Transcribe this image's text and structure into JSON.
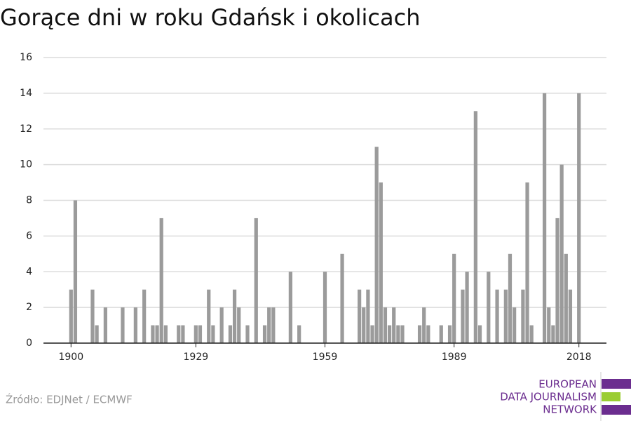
{
  "chart_data": {
    "type": "bar",
    "title": "Gorące dni w roku Gdańsk i okolicach",
    "source": "Źródło: EDJNet / ECMWF",
    "logo": [
      "EUROPEAN",
      "DATA JOURNALISM",
      "NETWORK"
    ],
    "color": "#9b9b9b",
    "grid": true,
    "x": [
      1900,
      1901,
      1905,
      1906,
      1908,
      1912,
      1915,
      1917,
      1919,
      1920,
      1921,
      1922,
      1925,
      1926,
      1929,
      1930,
      1932,
      1933,
      1935,
      1937,
      1938,
      1939,
      1941,
      1943,
      1945,
      1946,
      1947,
      1951,
      1953,
      1959,
      1963,
      1967,
      1968,
      1969,
      1970,
      1971,
      1972,
      1973,
      1974,
      1975,
      1976,
      1977,
      1981,
      1982,
      1983,
      1986,
      1988,
      1989,
      1991,
      1992,
      1994,
      1995,
      1997,
      1999,
      2001,
      2002,
      2003,
      2005,
      2006,
      2007,
      2010,
      2011,
      2012,
      2013,
      2014,
      2015,
      2016,
      2018
    ],
    "values": [
      3,
      8,
      3,
      1,
      2,
      2,
      2,
      3,
      1,
      1,
      7,
      1,
      1,
      1,
      1,
      1,
      3,
      1,
      2,
      1,
      3,
      2,
      1,
      7,
      1,
      2,
      2,
      4,
      1,
      4,
      5,
      3,
      2,
      3,
      1,
      11,
      9,
      2,
      1,
      2,
      1,
      1,
      1,
      2,
      1,
      1,
      1,
      5,
      3,
      4,
      13,
      1,
      4,
      3,
      3,
      5,
      2,
      3,
      9,
      1,
      14,
      2,
      1,
      7,
      10,
      5,
      3,
      14
    ],
    "xlim": [
      1893.6,
      2024.4
    ],
    "xticks": [
      1900,
      1929,
      1959,
      1989,
      2018
    ],
    "ylim": [
      0,
      16
    ],
    "yticks": [
      0,
      2,
      4,
      6,
      8,
      10,
      12,
      14,
      16
    ]
  }
}
